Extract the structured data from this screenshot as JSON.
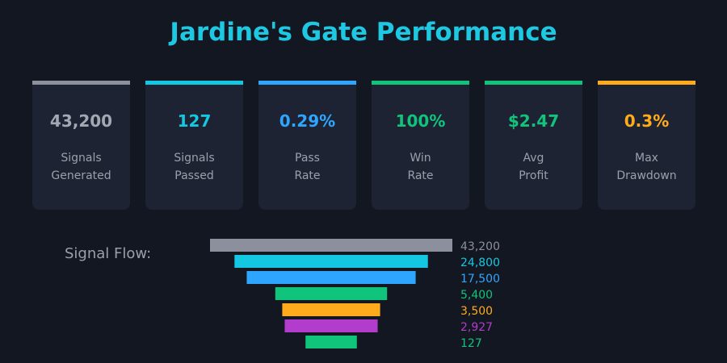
{
  "title": "Jardine's Gate Performance",
  "cards": [
    {
      "value": "43,200",
      "label": "Signals Generated",
      "color": "#8b909c",
      "value_color": "#a3a8b3"
    },
    {
      "value": "127",
      "label": "Signals Passed",
      "color": "#14c8e2",
      "value_color": "#14c8e2"
    },
    {
      "value": "0.29%",
      "label": "Pass Rate",
      "color": "#2ea6ff",
      "value_color": "#2ea6ff"
    },
    {
      "value": "100%",
      "label": "Win Rate",
      "color": "#10c47c",
      "value_color": "#10c47c"
    },
    {
      "value": "$2.47",
      "label": "Avg Profit",
      "color": "#10c47c",
      "value_color": "#10c47c"
    },
    {
      "value": "0.3%",
      "label": "Max Drawdown",
      "color": "#ffab1c",
      "value_color": "#ffab1c"
    }
  ],
  "chart_data": {
    "type": "funnel",
    "title": "Signal Flow:",
    "values": [
      43200,
      24800,
      17500,
      5400,
      3500,
      2927,
      127
    ],
    "value_labels": [
      "43,200",
      "24,800",
      "17,500",
      "5,400",
      "3,500",
      "2,927",
      "127"
    ],
    "colors": [
      "#8b909c",
      "#14c8e2",
      "#2ea6ff",
      "#10c47c",
      "#ffab1c",
      "#b23ccc",
      "#10c47c"
    ]
  }
}
